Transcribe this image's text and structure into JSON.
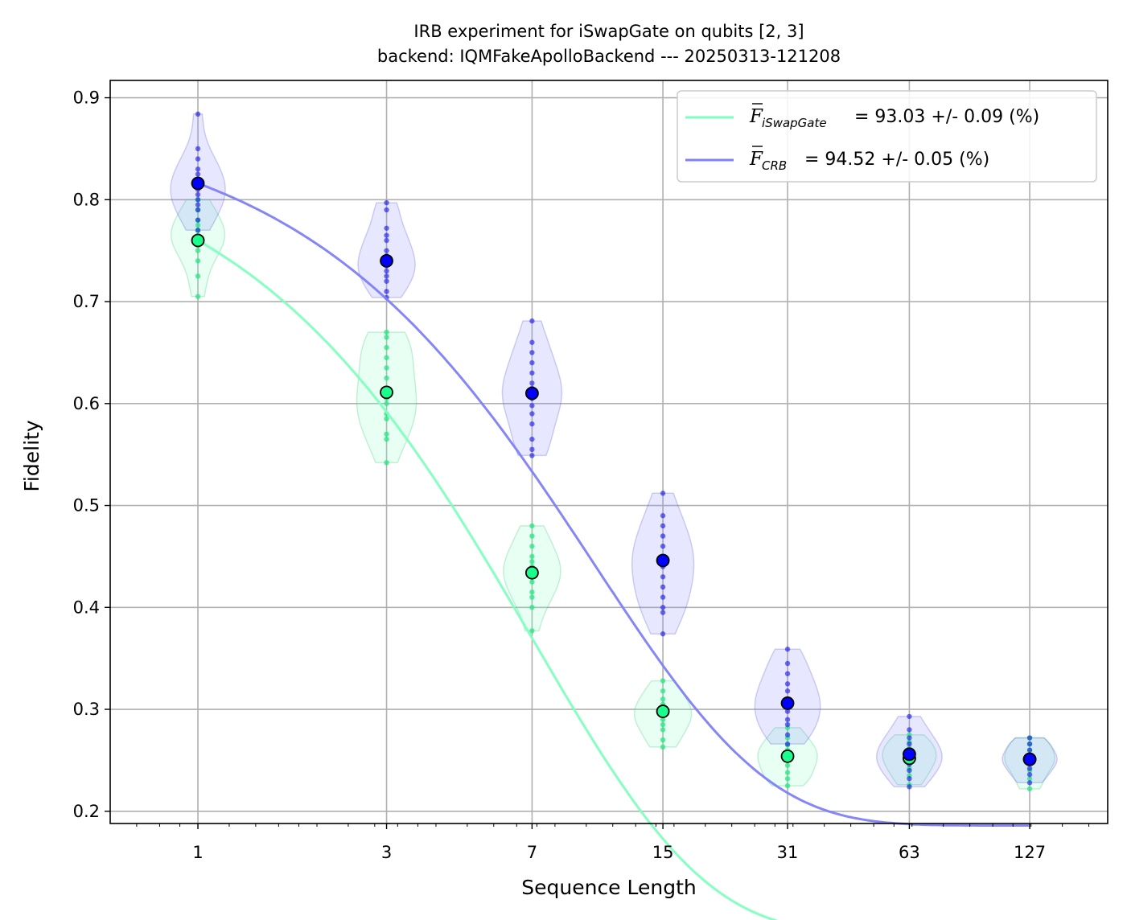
{
  "chart_data": {
    "type": "scatter",
    "title": "IRB experiment for iSwapGate on qubits [2, 3]",
    "subtitle": "backend: IQMFakeApolloBackend --- 20250313-121208",
    "xlabel": "Sequence Length",
    "ylabel": "Fidelity",
    "x_scale": "log",
    "xlim": [
      0.6,
      200
    ],
    "ylim": [
      0.188,
      0.917
    ],
    "x_ticks": [
      1,
      3,
      7,
      15,
      31,
      63,
      127
    ],
    "x_tick_labels": [
      "1",
      "3",
      "7",
      "15",
      "31",
      "63",
      "127"
    ],
    "y_ticks": [
      0.2,
      0.3,
      0.4,
      0.5,
      0.6,
      0.7,
      0.8,
      0.9
    ],
    "y_tick_labels": [
      "0.2",
      "0.3",
      "0.4",
      "0.5",
      "0.6",
      "0.7",
      "0.8",
      "0.9"
    ],
    "grid": true,
    "legend_position": "top-right",
    "series": [
      {
        "name": "iSwapGate",
        "legend_sub": "iSwapGate",
        "legend_value": "= 93.03 +/- 0.09 (%)",
        "color": "#7fffbf",
        "marker_color": "#1aff8c",
        "x": [
          1,
          3,
          7,
          15,
          31,
          63,
          127
        ],
        "y": [
          0.76,
          0.611,
          0.434,
          0.298,
          0.254,
          0.252,
          0.251
        ],
        "fit_params": {
          "A": 0.68,
          "p": 0.8675,
          "B": 0.251
        },
        "violins": [
          {
            "lo": 0.705,
            "hi": 0.8,
            "width": 0.45,
            "points": [
              0.705,
              0.725,
              0.74,
              0.75,
              0.755,
              0.76,
              0.765,
              0.77,
              0.775,
              0.78,
              0.79,
              0.8
            ]
          },
          {
            "lo": 0.542,
            "hi": 0.67,
            "width": 0.5,
            "points": [
              0.542,
              0.565,
              0.57,
              0.585,
              0.59,
              0.6,
              0.605,
              0.615,
              0.625,
              0.635,
              0.645,
              0.655,
              0.665,
              0.67
            ]
          },
          {
            "lo": 0.377,
            "hi": 0.48,
            "width": 0.48,
            "points": [
              0.377,
              0.4,
              0.41,
              0.415,
              0.425,
              0.43,
              0.435,
              0.44,
              0.445,
              0.45,
              0.46,
              0.47,
              0.48
            ]
          },
          {
            "lo": 0.263,
            "hi": 0.328,
            "width": 0.48,
            "points": [
              0.263,
              0.27,
              0.28,
              0.285,
              0.29,
              0.295,
              0.3,
              0.305,
              0.31,
              0.318,
              0.328
            ]
          },
          {
            "lo": 0.225,
            "hi": 0.282,
            "width": 0.5,
            "points": [
              0.225,
              0.232,
              0.238,
              0.245,
              0.25,
              0.255,
              0.26,
              0.265,
              0.272,
              0.282
            ]
          },
          {
            "lo": 0.226,
            "hi": 0.275,
            "width": 0.45,
            "points": [
              0.226,
              0.235,
              0.242,
              0.248,
              0.252,
              0.258,
              0.262,
              0.268,
              0.275
            ]
          },
          {
            "lo": 0.222,
            "hi": 0.272,
            "width": 0.42,
            "points": [
              0.222,
              0.232,
              0.24,
              0.246,
              0.25,
              0.255,
              0.26,
              0.266,
              0.272
            ]
          }
        ]
      },
      {
        "name": "CRB",
        "legend_sub": "CRB",
        "legend_value": "= 94.52 +/- 0.05 (%)",
        "color": "#7f7ff7",
        "marker_color": "#0000ff",
        "x": [
          1,
          3,
          7,
          15,
          31,
          63,
          127
        ],
        "y": [
          0.816,
          0.74,
          0.61,
          0.446,
          0.306,
          0.256,
          0.251
        ],
        "fit_params": {
          "A": 0.63,
          "p": 0.9055,
          "B": 0.251
        },
        "violins": [
          {
            "lo": 0.77,
            "hi": 0.884,
            "width": 0.46,
            "points": [
              0.77,
              0.78,
              0.79,
              0.795,
              0.8,
              0.805,
              0.81,
              0.815,
              0.82,
              0.825,
              0.83,
              0.84,
              0.85,
              0.884
            ]
          },
          {
            "lo": 0.704,
            "hi": 0.797,
            "width": 0.48,
            "points": [
              0.704,
              0.71,
              0.72,
              0.725,
              0.73,
              0.735,
              0.74,
              0.745,
              0.75,
              0.76,
              0.765,
              0.772,
              0.79,
              0.797
            ]
          },
          {
            "lo": 0.549,
            "hi": 0.681,
            "width": 0.5,
            "points": [
              0.549,
              0.555,
              0.565,
              0.58,
              0.59,
              0.598,
              0.605,
              0.61,
              0.615,
              0.62,
              0.63,
              0.64,
              0.65,
              0.66,
              0.681
            ]
          },
          {
            "lo": 0.374,
            "hi": 0.512,
            "width": 0.52,
            "points": [
              0.374,
              0.395,
              0.4,
              0.41,
              0.42,
              0.43,
              0.44,
              0.445,
              0.45,
              0.46,
              0.47,
              0.48,
              0.49,
              0.512
            ]
          },
          {
            "lo": 0.266,
            "hi": 0.359,
            "width": 0.55,
            "points": [
              0.266,
              0.275,
              0.285,
              0.29,
              0.298,
              0.305,
              0.31,
              0.318,
              0.325,
              0.335,
              0.345,
              0.359
            ]
          },
          {
            "lo": 0.224,
            "hi": 0.293,
            "width": 0.55,
            "points": [
              0.224,
              0.232,
              0.24,
              0.246,
              0.25,
              0.255,
              0.26,
              0.266,
              0.272,
              0.28,
              0.293
            ]
          },
          {
            "lo": 0.228,
            "hi": 0.272,
            "width": 0.46,
            "points": [
              0.228,
              0.236,
              0.242,
              0.247,
              0.251,
              0.255,
              0.26,
              0.266,
              0.272
            ]
          }
        ]
      }
    ]
  }
}
